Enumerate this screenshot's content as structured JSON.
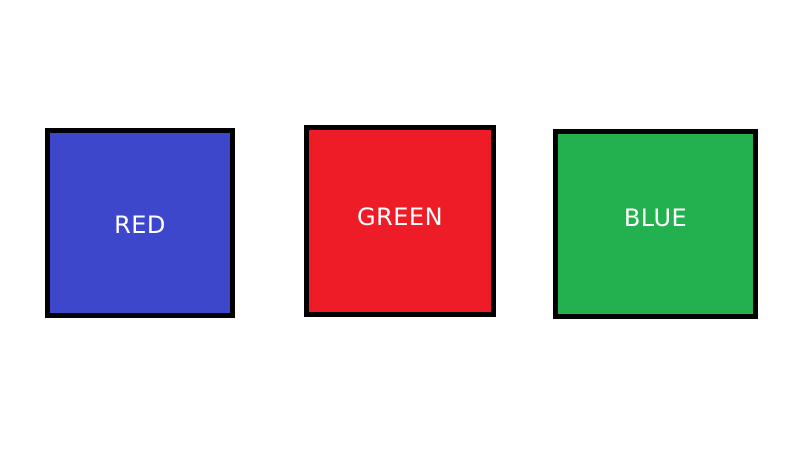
{
  "tiles": [
    {
      "label": "RED",
      "fill": "#3d47cc"
    },
    {
      "label": "GREEN",
      "fill": "#ee1c27"
    },
    {
      "label": "BLUE",
      "fill": "#23b04e"
    }
  ],
  "colors": {
    "border": "#000000",
    "text": "#ffffff",
    "background": "#ffffff"
  }
}
